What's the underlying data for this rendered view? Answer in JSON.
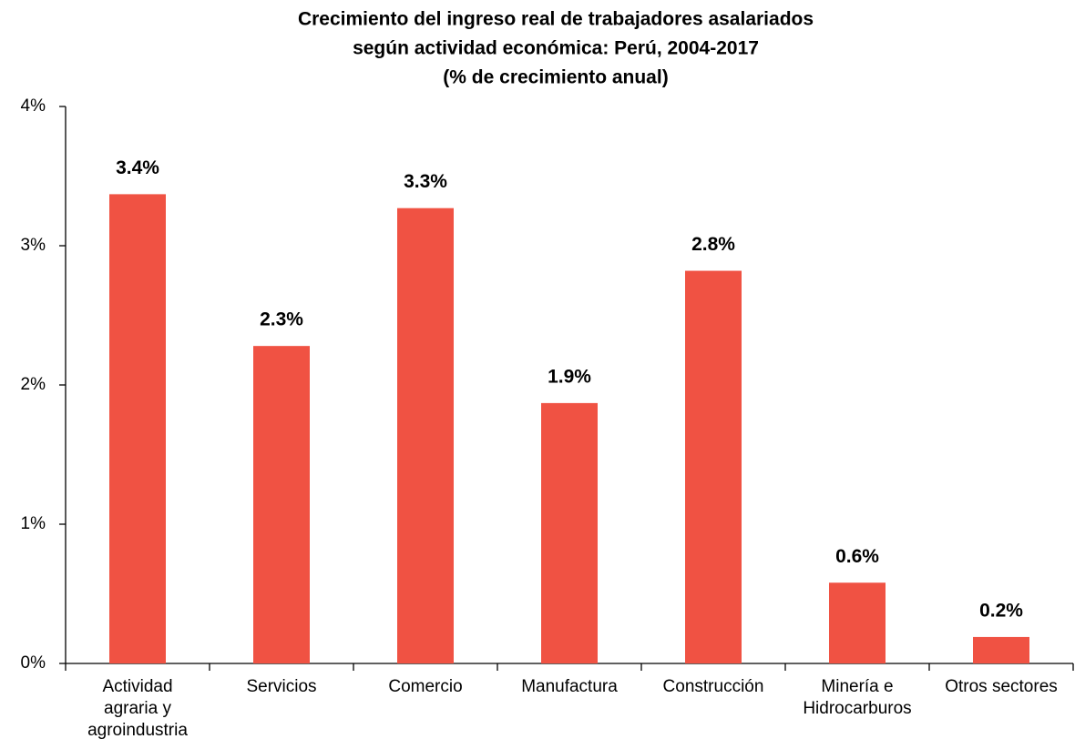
{
  "chart_data": {
    "type": "bar",
    "title": [
      "Crecimiento del ingreso real de trabajadores  asalariados",
      "según actividad económica: Perú, 2004-2017",
      "(% de crecimiento anual)"
    ],
    "categories": [
      [
        "Actividad",
        "agraria y",
        "agroindustria"
      ],
      [
        "Servicios"
      ],
      [
        "Comercio"
      ],
      [
        "Manufactura"
      ],
      [
        "Construcción"
      ],
      [
        "Minería e",
        "Hidrocarburos"
      ],
      [
        "Otros sectores"
      ]
    ],
    "values": [
      3.37,
      2.28,
      3.27,
      1.87,
      2.82,
      0.58,
      0.19
    ],
    "value_labels": [
      "3.4%",
      "2.3%",
      "3.3%",
      "1.9%",
      "2.8%",
      "0.6%",
      "0.2%"
    ],
    "color": "#f05243",
    "ylim": [
      0,
      4
    ],
    "yticks": [
      {
        "value": 0,
        "label": "0%"
      },
      {
        "value": 1,
        "label": "1%"
      },
      {
        "value": 2,
        "label": "2%"
      },
      {
        "value": 3,
        "label": "3%"
      },
      {
        "value": 4,
        "label": "4%"
      }
    ],
    "grid": false
  }
}
